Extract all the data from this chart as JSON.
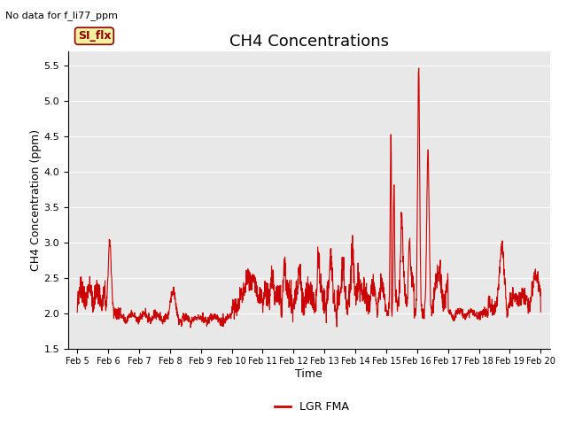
{
  "title": "CH4 Concentrations",
  "subtitle": "No data for f_li77_ppm",
  "xlabel": "Time",
  "ylabel": "CH4 Concentration (ppm)",
  "ylim": [
    1.5,
    5.7
  ],
  "yticks": [
    1.5,
    2.0,
    2.5,
    3.0,
    3.5,
    4.0,
    4.5,
    5.0,
    5.5
  ],
  "x_tick_labels": [
    "Feb 5",
    "Feb 6",
    "Feb 7",
    "Feb 8",
    "Feb 9",
    "Feb 10",
    "Feb 11",
    "Feb 12",
    "Feb 13",
    "Feb 14",
    "Feb 15",
    "Feb 16",
    "Feb 17",
    "Feb 18",
    "Feb 19",
    "Feb 20"
  ],
  "line_color": "#cc0000",
  "line_width": 0.8,
  "background_color": "#e8e8e8",
  "legend_label": "LGR FMA",
  "legend_line_color": "#cc0000",
  "si_flx_label": "SI_flx",
  "si_flx_bg": "#f5f0a0",
  "si_flx_border": "#8b0000",
  "si_flx_text_color": "#8b0000",
  "title_fontsize": 13,
  "label_fontsize": 9,
  "tick_fontsize": 8,
  "subtitle_fontsize": 8
}
